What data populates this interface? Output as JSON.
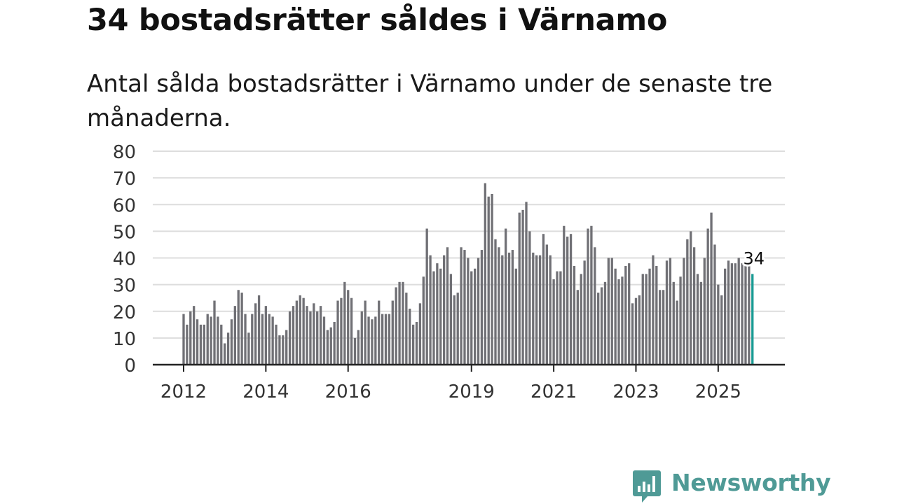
{
  "title": "34 bostadsrätter såldes i Värnamo",
  "subtitle": "Antal sålda bostadsrätter i Värnamo under de senaste tre månaderna.",
  "brand": {
    "name": "Newsworthy",
    "icon": "newsworthy-logo-icon",
    "color": "#4f9a96"
  },
  "colors": {
    "bar": "#707075",
    "highlight": "#1a9b94",
    "grid": "#dddddd",
    "axis": "#222222",
    "tick_text": "#333333"
  },
  "chart_data": {
    "type": "bar",
    "title": "34 bostadsrätter såldes i Värnamo",
    "xlabel": "",
    "ylabel": "",
    "ylim": [
      0,
      80
    ],
    "yticks": [
      "0",
      "10",
      "20",
      "30",
      "40",
      "50",
      "60",
      "70",
      "80"
    ],
    "xticks": [
      {
        "label": "2012",
        "index": 0
      },
      {
        "label": "2014",
        "index": 24
      },
      {
        "label": "2016",
        "index": 48
      },
      {
        "label": "2019",
        "index": 84
      },
      {
        "label": "2021",
        "index": 108
      },
      {
        "label": "2023",
        "index": 132
      },
      {
        "label": "2025",
        "index": 156
      }
    ],
    "start": "2012-01",
    "interval": "month",
    "values": [
      19,
      15,
      20,
      22,
      17,
      15,
      15,
      19,
      18,
      24,
      18,
      15,
      8,
      12,
      17,
      22,
      28,
      27,
      19,
      12,
      19,
      23,
      26,
      19,
      22,
      19,
      18,
      15,
      11,
      11,
      13,
      20,
      22,
      24,
      26,
      25,
      22,
      20,
      23,
      20,
      22,
      18,
      13,
      14,
      16,
      24,
      25,
      31,
      28,
      25,
      10,
      13,
      20,
      24,
      18,
      17,
      18,
      24,
      19,
      19,
      19,
      24,
      29,
      31,
      31,
      27,
      21,
      15,
      16,
      23,
      33,
      51,
      41,
      35,
      38,
      36,
      41,
      44,
      34,
      26,
      27,
      44,
      43,
      40,
      35,
      36,
      40,
      43,
      68,
      63,
      64,
      47,
      44,
      41,
      51,
      42,
      43,
      36,
      57,
      58,
      61,
      50,
      42,
      41,
      41,
      49,
      45,
      41,
      32,
      35,
      35,
      52,
      48,
      49,
      37,
      28,
      34,
      39,
      51,
      52,
      44,
      27,
      29,
      31,
      40,
      40,
      36,
      32,
      33,
      37,
      38,
      23,
      25,
      26,
      34,
      34,
      36,
      41,
      37,
      28,
      28,
      39,
      40,
      31,
      24,
      33,
      40,
      47,
      50,
      44,
      34,
      31,
      40,
      51,
      57,
      45,
      30,
      26,
      36,
      39,
      38,
      38,
      40,
      38,
      37,
      37,
      34
    ],
    "highlight_last": true,
    "annotation": {
      "label": "34",
      "index": 166
    }
  }
}
